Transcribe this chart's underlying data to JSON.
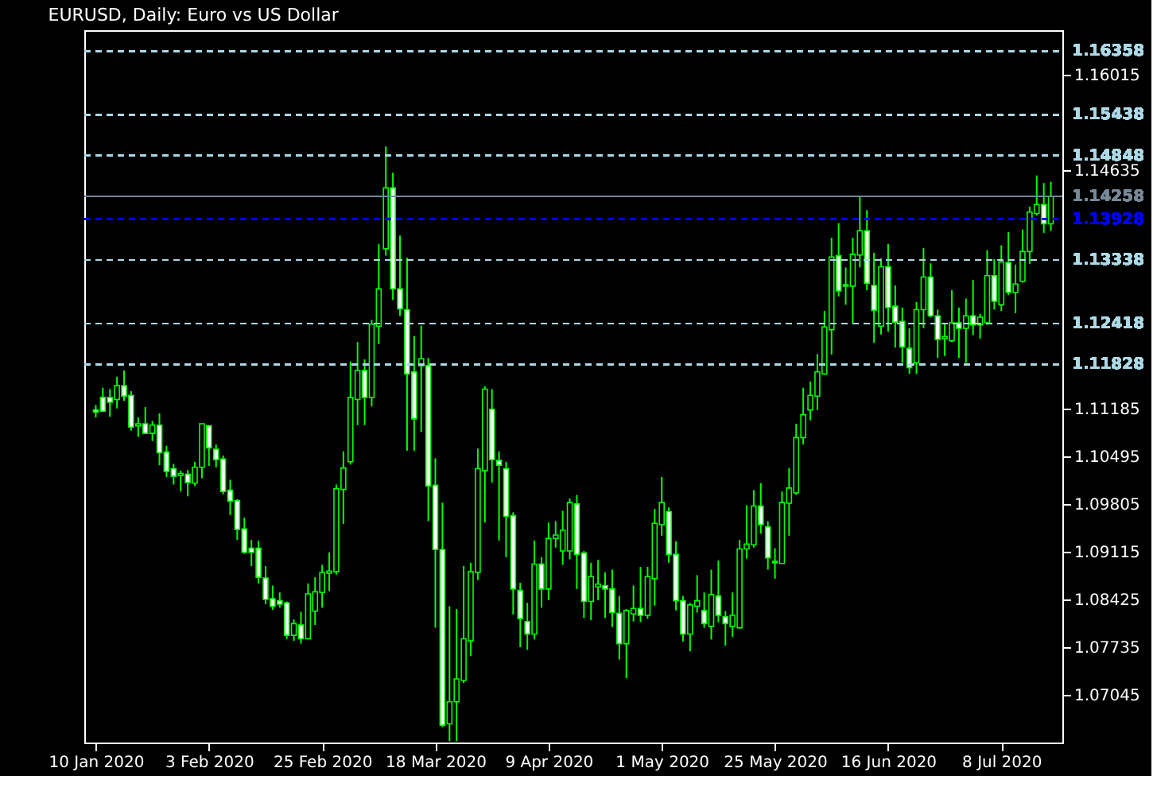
{
  "chart_data": {
    "type": "candlestick",
    "title": "EURUSD, Daily: Euro vs US Dollar",
    "color": "#00ff00",
    "categories": [
      "10 Jan 2020",
      null,
      null,
      null,
      null,
      null,
      null,
      null,
      null,
      null,
      null,
      null,
      null,
      null,
      null,
      null,
      "3 Feb 2020",
      null,
      null,
      null,
      null,
      null,
      null,
      null,
      null,
      null,
      null,
      null,
      null,
      null,
      null,
      null,
      "25 Feb 2020",
      null,
      null,
      null,
      null,
      null,
      null,
      null,
      null,
      null,
      null,
      null,
      null,
      null,
      null,
      null,
      "18 Mar 2020",
      null,
      null,
      null,
      null,
      null,
      null,
      null,
      null,
      null,
      null,
      null,
      null,
      null,
      null,
      null,
      "9 Apr 2020",
      null,
      null,
      null,
      null,
      null,
      null,
      null,
      null,
      null,
      null,
      null,
      null,
      null,
      null,
      null,
      "1 May 2020",
      null,
      null,
      null,
      null,
      null,
      null,
      null,
      null,
      null,
      null,
      null,
      null,
      null,
      null,
      null,
      "25 May 2020",
      null,
      null,
      null,
      null,
      null,
      null,
      null,
      null,
      null,
      null,
      null,
      null,
      null,
      null,
      null,
      "16 Jun 2020",
      null,
      null,
      null,
      null,
      null,
      null,
      null,
      null,
      null,
      null,
      null,
      null,
      null,
      null,
      null,
      "8 Jul 2020",
      null,
      null,
      null,
      null,
      null,
      null,
      null
    ],
    "ohlc": [
      [
        1.1117,
        1.1124,
        1.1106,
        1.1114
      ],
      [
        1.1135,
        1.1149,
        1.1114,
        1.1115
      ],
      [
        1.1135,
        1.1147,
        1.1107,
        1.1128
      ],
      [
        1.1132,
        1.1165,
        1.1119,
        1.1152
      ],
      [
        1.1152,
        1.1174,
        1.113,
        1.1137
      ],
      [
        1.1138,
        1.1144,
        1.1087,
        1.1092
      ],
      [
        1.1094,
        1.1106,
        1.1078,
        1.1097
      ],
      [
        1.1097,
        1.1121,
        1.1082,
        1.1083
      ],
      [
        1.1083,
        1.1101,
        1.1072,
        1.1095
      ],
      [
        1.1095,
        1.1112,
        1.1037,
        1.1055
      ],
      [
        1.1056,
        1.1065,
        1.102,
        1.1028
      ],
      [
        1.1032,
        1.1039,
        1.1009,
        1.1021
      ],
      [
        1.1022,
        1.1029,
        1.0999,
        1.1025
      ],
      [
        1.1024,
        1.103,
        1.0992,
        1.1012
      ],
      [
        1.1011,
        1.1042,
        1.1007,
        1.1034
      ],
      [
        1.1034,
        1.1097,
        1.1018,
        1.1097
      ],
      [
        1.1094,
        1.1095,
        1.1036,
        1.1062
      ],
      [
        1.106,
        1.1067,
        1.1034,
        1.1045
      ],
      [
        1.1046,
        1.1051,
        1.0995,
        1.0999
      ],
      [
        1.1001,
        1.1016,
        1.0965,
        1.0985
      ],
      [
        1.0986,
        1.0988,
        1.0929,
        1.0944
      ],
      [
        1.0945,
        1.0961,
        1.0909,
        1.0911
      ],
      [
        1.0917,
        1.0929,
        1.0891,
        1.0911
      ],
      [
        1.0917,
        1.0928,
        1.0866,
        1.0875
      ],
      [
        1.0874,
        1.0891,
        1.0836,
        1.0843
      ],
      [
        1.0844,
        1.0863,
        1.0828,
        1.0833
      ],
      [
        1.0841,
        1.0853,
        1.0831,
        1.0836
      ],
      [
        1.0838,
        1.084,
        1.0786,
        1.0791
      ],
      [
        1.0791,
        1.0814,
        1.0783,
        1.0808
      ],
      [
        1.0806,
        1.0825,
        1.0779,
        1.0786
      ],
      [
        1.0786,
        1.0866,
        1.0785,
        1.0851
      ],
      [
        1.0826,
        1.0875,
        1.0806,
        1.0854
      ],
      [
        1.0853,
        1.0893,
        1.0831,
        1.0882
      ],
      [
        1.0881,
        1.0911,
        1.0855,
        1.0884
      ],
      [
        1.0883,
        1.1009,
        1.0879,
        1.1003
      ],
      [
        1.1002,
        1.1057,
        1.0952,
        1.1033
      ],
      [
        1.1042,
        1.1187,
        1.1038,
        1.1135
      ],
      [
        1.1132,
        1.1215,
        1.1095,
        1.1174
      ],
      [
        1.1174,
        1.119,
        1.1095,
        1.1135
      ],
      [
        1.1135,
        1.1247,
        1.1122,
        1.1241
      ],
      [
        1.1238,
        1.1357,
        1.1212,
        1.1292
      ],
      [
        1.135,
        1.1498,
        1.134,
        1.1438
      ],
      [
        1.1438,
        1.146,
        1.1276,
        1.1292
      ],
      [
        1.1292,
        1.1369,
        1.1253,
        1.1263
      ],
      [
        1.1262,
        1.1337,
        1.1058,
        1.1169
      ],
      [
        1.1172,
        1.1224,
        1.1058,
        1.1104
      ],
      [
        1.1181,
        1.1239,
        1.1085,
        1.1191
      ],
      [
        1.1181,
        1.1192,
        1.0956,
        1.1007
      ],
      [
        1.1008,
        1.1047,
        1.0802,
        1.0915
      ],
      [
        1.0915,
        1.0983,
        1.0658,
        1.0661
      ],
      [
        1.0663,
        1.0833,
        1.0638,
        1.0695
      ],
      [
        1.0695,
        1.0829,
        1.0638,
        1.0728
      ],
      [
        1.0726,
        1.0891,
        1.0722,
        1.0786
      ],
      [
        1.0783,
        1.0896,
        1.0761,
        1.0883
      ],
      [
        1.0882,
        1.1061,
        1.0871,
        1.1032
      ],
      [
        1.1029,
        1.1151,
        1.0954,
        1.1147
      ],
      [
        1.1118,
        1.1147,
        1.1012,
        1.1045
      ],
      [
        1.1044,
        1.1057,
        1.0928,
        1.1037
      ],
      [
        1.1032,
        1.1042,
        1.0904,
        1.0963
      ],
      [
        1.0964,
        1.0969,
        1.0821,
        1.0858
      ],
      [
        1.0856,
        1.0867,
        1.0774,
        1.0815
      ],
      [
        1.0811,
        1.0838,
        1.077,
        1.0793
      ],
      [
        1.0793,
        1.0928,
        1.0785,
        1.0894
      ],
      [
        1.0894,
        1.0904,
        1.0831,
        1.0858
      ],
      [
        1.0858,
        1.0954,
        1.0842,
        1.0931
      ],
      [
        1.0931,
        1.0956,
        1.0918,
        1.0936
      ],
      [
        1.0913,
        1.0971,
        1.0893,
        1.0943
      ],
      [
        1.0913,
        1.0989,
        1.0901,
        1.0983
      ],
      [
        1.0981,
        1.0994,
        1.0858,
        1.0908
      ],
      [
        1.091,
        1.0913,
        1.0816,
        1.084
      ],
      [
        1.084,
        1.0896,
        1.0813,
        1.0876
      ],
      [
        1.0861,
        1.09,
        1.0842,
        1.0865
      ],
      [
        1.0863,
        1.0882,
        1.0816,
        1.0858
      ],
      [
        1.0858,
        1.0886,
        1.0803,
        1.0824
      ],
      [
        1.0823,
        1.0848,
        1.0756,
        1.0779
      ],
      [
        1.0779,
        1.0829,
        1.0729,
        1.0827
      ],
      [
        1.0822,
        1.0863,
        1.0811,
        1.083
      ],
      [
        1.083,
        1.089,
        1.081,
        1.082
      ],
      [
        1.082,
        1.089,
        1.0815,
        1.0876
      ],
      [
        1.0873,
        1.0974,
        1.0834,
        1.0953
      ],
      [
        1.0951,
        1.102,
        1.0935,
        1.0983
      ],
      [
        1.097,
        1.0976,
        1.0896,
        1.0908
      ],
      [
        1.0908,
        1.0927,
        1.0827,
        1.0841
      ],
      [
        1.0841,
        1.0848,
        1.0782,
        1.0793
      ],
      [
        1.0793,
        1.0838,
        1.0768,
        1.0835
      ],
      [
        1.0833,
        1.0878,
        1.0824,
        1.0841
      ],
      [
        1.0827,
        1.0853,
        1.0802,
        1.0808
      ],
      [
        1.0804,
        1.0886,
        1.0785,
        1.085
      ],
      [
        1.0848,
        1.0899,
        1.081,
        1.082
      ],
      [
        1.0818,
        1.0826,
        1.0776,
        1.0808
      ],
      [
        1.0804,
        1.0853,
        1.0789,
        1.082
      ],
      [
        1.0802,
        1.0929,
        1.0801,
        1.0916
      ],
      [
        1.0916,
        1.0979,
        1.0902,
        1.0923
      ],
      [
        1.0922,
        1.1001,
        1.0918,
        1.0978
      ],
      [
        1.0978,
        1.1011,
        1.0938,
        1.0951
      ],
      [
        1.0948,
        1.0956,
        1.0886,
        1.0903
      ],
      [
        1.0896,
        1.0917,
        1.0873,
        1.0898
      ],
      [
        1.0895,
        1.0999,
        1.0895,
        1.0983
      ],
      [
        1.0982,
        1.1033,
        1.0935,
        1.1004
      ],
      [
        1.0997,
        1.1097,
        1.0994,
        1.1077
      ],
      [
        1.1077,
        1.1149,
        1.1067,
        1.111
      ],
      [
        1.1117,
        1.1158,
        1.1102,
        1.1138
      ],
      [
        1.1137,
        1.1198,
        1.1117,
        1.1172
      ],
      [
        1.1169,
        1.126,
        1.1168,
        1.1237
      ],
      [
        1.1233,
        1.1366,
        1.1197,
        1.1338
      ],
      [
        1.134,
        1.1387,
        1.1281,
        1.1289
      ],
      [
        1.1296,
        1.1323,
        1.1269,
        1.1298
      ],
      [
        1.1296,
        1.1366,
        1.1242,
        1.1342
      ],
      [
        1.1341,
        1.1426,
        1.1323,
        1.1376
      ],
      [
        1.1376,
        1.1406,
        1.129,
        1.13
      ],
      [
        1.1297,
        1.1344,
        1.1214,
        1.1261
      ],
      [
        1.1238,
        1.1336,
        1.1226,
        1.1324
      ],
      [
        1.1324,
        1.1357,
        1.123,
        1.1265
      ],
      [
        1.1267,
        1.1297,
        1.1207,
        1.1244
      ],
      [
        1.1245,
        1.1265,
        1.1185,
        1.1208
      ],
      [
        1.1206,
        1.1235,
        1.1169,
        1.1178
      ],
      [
        1.1185,
        1.1273,
        1.1169,
        1.1262
      ],
      [
        1.1262,
        1.1351,
        1.1235,
        1.1309
      ],
      [
        1.1309,
        1.1329,
        1.1251,
        1.1253
      ],
      [
        1.1253,
        1.1262,
        1.1192,
        1.1219
      ],
      [
        1.122,
        1.1242,
        1.1195,
        1.1223
      ],
      [
        1.1217,
        1.129,
        1.1215,
        1.1243
      ],
      [
        1.1243,
        1.1265,
        1.1192,
        1.1235
      ],
      [
        1.1235,
        1.1278,
        1.1185,
        1.1253
      ],
      [
        1.1253,
        1.1305,
        1.1225,
        1.124
      ],
      [
        1.124,
        1.1256,
        1.122,
        1.1251
      ],
      [
        1.1243,
        1.1348,
        1.124,
        1.1311
      ],
      [
        1.1311,
        1.1335,
        1.1262,
        1.1274
      ],
      [
        1.1269,
        1.1355,
        1.126,
        1.1331
      ],
      [
        1.133,
        1.1374,
        1.1283,
        1.1287
      ],
      [
        1.1287,
        1.1327,
        1.1257,
        1.1299
      ],
      [
        1.1303,
        1.1378,
        1.1301,
        1.1346
      ],
      [
        1.1346,
        1.1411,
        1.1328,
        1.1403
      ],
      [
        1.1401,
        1.1456,
        1.1398,
        1.1414
      ],
      [
        1.1414,
        1.1445,
        1.1373,
        1.1386
      ],
      [
        1.1386,
        1.1447,
        1.1376,
        1.1426
      ]
    ],
    "ylim": [
      1.0636,
      1.1666
    ],
    "yticks": [
      1.07045,
      1.07735,
      1.08425,
      1.09115,
      1.09805,
      1.10495,
      1.11185,
      1.14635,
      1.16015
    ],
    "ref_lines": [
      {
        "axis": "y",
        "value": 1.16358,
        "label": "1.16358",
        "color": "#add8e6",
        "line_style": "dashed"
      },
      {
        "axis": "y",
        "value": 1.15438,
        "label": "1.15438",
        "color": "#add8e6",
        "line_style": "dashed"
      },
      {
        "axis": "y",
        "value": 1.14848,
        "label": "1.14848",
        "color": "#add8e6",
        "line_style": "dashed"
      },
      {
        "axis": "y",
        "value": 1.14258,
        "label": "1.14258",
        "color": "#778899",
        "line_style": "solid"
      },
      {
        "axis": "y",
        "value": 1.13928,
        "label": "1.13928",
        "color": "#0000ff",
        "line_style": "dashed"
      },
      {
        "axis": "y",
        "value": 1.13338,
        "label": "1.13338",
        "color": "#add8e6",
        "line_style": "dashed"
      },
      {
        "axis": "y",
        "value": 1.12418,
        "label": "1.12418",
        "color": "#add8e6",
        "line_style": "dashed"
      },
      {
        "axis": "y",
        "value": 1.11828,
        "label": "1.11828",
        "color": "#add8e6",
        "line_style": "dashed"
      }
    ],
    "grid": false
  }
}
